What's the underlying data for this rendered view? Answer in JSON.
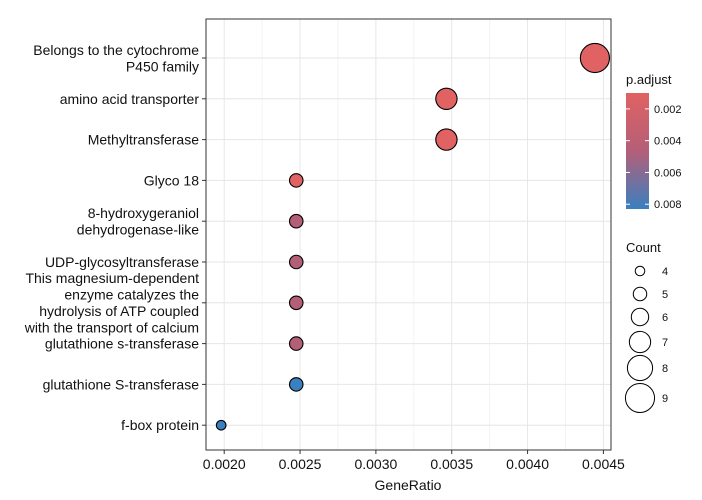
{
  "chart_data": {
    "type": "scatter",
    "xlabel": "GeneRatio",
    "ylabel": "",
    "xlim": [
      0.00188,
      0.00455
    ],
    "x_ticks": [
      0.002,
      0.0025,
      0.003,
      0.0035,
      0.004,
      0.0045
    ],
    "x_tick_labels": [
      "0.0020",
      "0.0025",
      "0.0030",
      "0.0035",
      "0.0040",
      "0.0045"
    ],
    "grid": true,
    "categories": [
      "Belongs to the cytochrome\nP450 family",
      "amino acid transporter",
      "Methyltransferase",
      "Glyco 18",
      "8-hydroxygeraniol\ndehydrogenase-like",
      "UDP-glycosyltransferase",
      "This magnesium-dependent\nenzyme catalyzes the\nhydrolysis of ATP coupled\nwith the transport of calcium",
      "glutathione s-transferase",
      "glutathione S-transferase",
      "f-box protein"
    ],
    "points": [
      {
        "category": "Belongs to the cytochrome\nP450 family",
        "x": 0.004444,
        "count": 9,
        "p_adjust": 0.0012,
        "color": "#e06262"
      },
      {
        "category": "amino acid transporter",
        "x": 0.003465,
        "count": 7,
        "p_adjust": 0.0015,
        "color": "#e06262"
      },
      {
        "category": "Methyltransferase",
        "x": 0.003465,
        "count": 7,
        "p_adjust": 0.0015,
        "color": "#e06262"
      },
      {
        "category": "Glyco 18",
        "x": 0.002475,
        "count": 5,
        "p_adjust": 0.0015,
        "color": "#e06262"
      },
      {
        "category": "8-hydroxygeraniol\ndehydrogenase-like",
        "x": 0.002475,
        "count": 5,
        "p_adjust": 0.0041,
        "color": "#b45f78"
      },
      {
        "category": "UDP-glycosyltransferase",
        "x": 0.002475,
        "count": 5,
        "p_adjust": 0.0041,
        "color": "#b45f78"
      },
      {
        "category": "This magnesium-dependent\nenzyme catalyzes the\nhydrolysis of ATP coupled\nwith the transport of calcium",
        "x": 0.002475,
        "count": 5,
        "p_adjust": 0.0041,
        "color": "#b45f78"
      },
      {
        "category": "glutathione s-transferase",
        "x": 0.002475,
        "count": 5,
        "p_adjust": 0.0041,
        "color": "#b45f78"
      },
      {
        "category": "glutathione S-transferase",
        "x": 0.002475,
        "count": 5,
        "p_adjust": 0.0082,
        "color": "#3a80bf"
      },
      {
        "category": "f-box protein",
        "x": 0.00198,
        "count": 4,
        "p_adjust": 0.0082,
        "color": "#3a80bf"
      }
    ],
    "color_legend": {
      "title": "p.adjust",
      "ticks": [
        0.002,
        0.004,
        0.006,
        0.008
      ],
      "tick_labels": [
        "0.002",
        "0.004",
        "0.006",
        "0.008"
      ],
      "range": [
        0.001,
        0.0083
      ],
      "color_low": "#e06262",
      "color_high": "#3a80bf",
      "color_mid": "#b45f78"
    },
    "size_legend": {
      "title": "Count",
      "values": [
        4,
        5,
        6,
        7,
        8,
        9
      ],
      "labels": [
        "4",
        "5",
        "6",
        "7",
        "8",
        "9"
      ]
    }
  }
}
